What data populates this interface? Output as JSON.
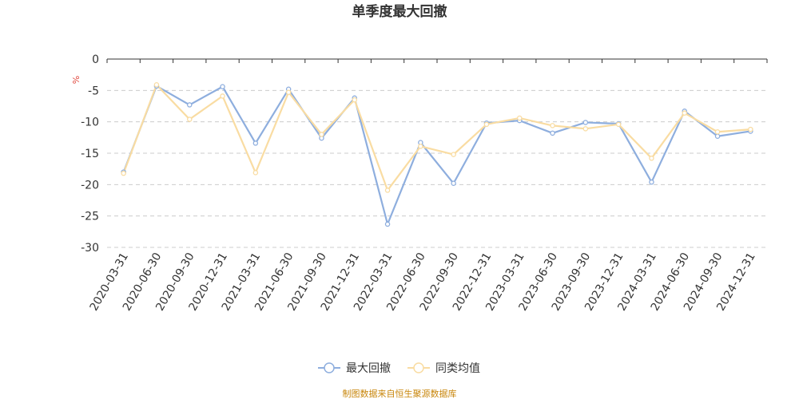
{
  "chart_data": {
    "type": "line",
    "title": "单季度最大回撤",
    "ylabel": "%",
    "ylim": [
      -30,
      0
    ],
    "yticks": [
      0,
      -5,
      -10,
      -15,
      -20,
      -25,
      -30
    ],
    "grid": true,
    "legend_position": "bottom",
    "categories": [
      "2020-03-31",
      "2020-06-30",
      "2020-09-30",
      "2020-12-31",
      "2021-03-31",
      "2021-06-30",
      "2021-09-30",
      "2021-12-31",
      "2022-03-31",
      "2022-06-30",
      "2022-09-30",
      "2022-12-31",
      "2023-03-31",
      "2023-06-30",
      "2023-09-30",
      "2023-12-31",
      "2024-03-31",
      "2024-06-30",
      "2024-09-30",
      "2024-12-31"
    ],
    "series": [
      {
        "name": "最大回撤",
        "color": "#8eaede",
        "values": [
          -18.0,
          -4.3,
          -7.3,
          -4.4,
          -13.4,
          -4.8,
          -12.6,
          -6.2,
          -26.3,
          -13.3,
          -19.8,
          -10.2,
          -9.8,
          -11.8,
          -10.1,
          -10.3,
          -19.6,
          -8.3,
          -12.3,
          -11.5
        ]
      },
      {
        "name": "同类均值",
        "color": "#f9dca2",
        "values": [
          -18.2,
          -4.1,
          -9.6,
          -5.9,
          -18.1,
          -5.3,
          -12.0,
          -6.5,
          -20.9,
          -13.9,
          -15.2,
          -10.4,
          -9.4,
          -10.6,
          -11.1,
          -10.4,
          -15.8,
          -8.6,
          -11.6,
          -11.2
        ]
      }
    ],
    "source": "制图数据来自恒生聚源数据库"
  }
}
